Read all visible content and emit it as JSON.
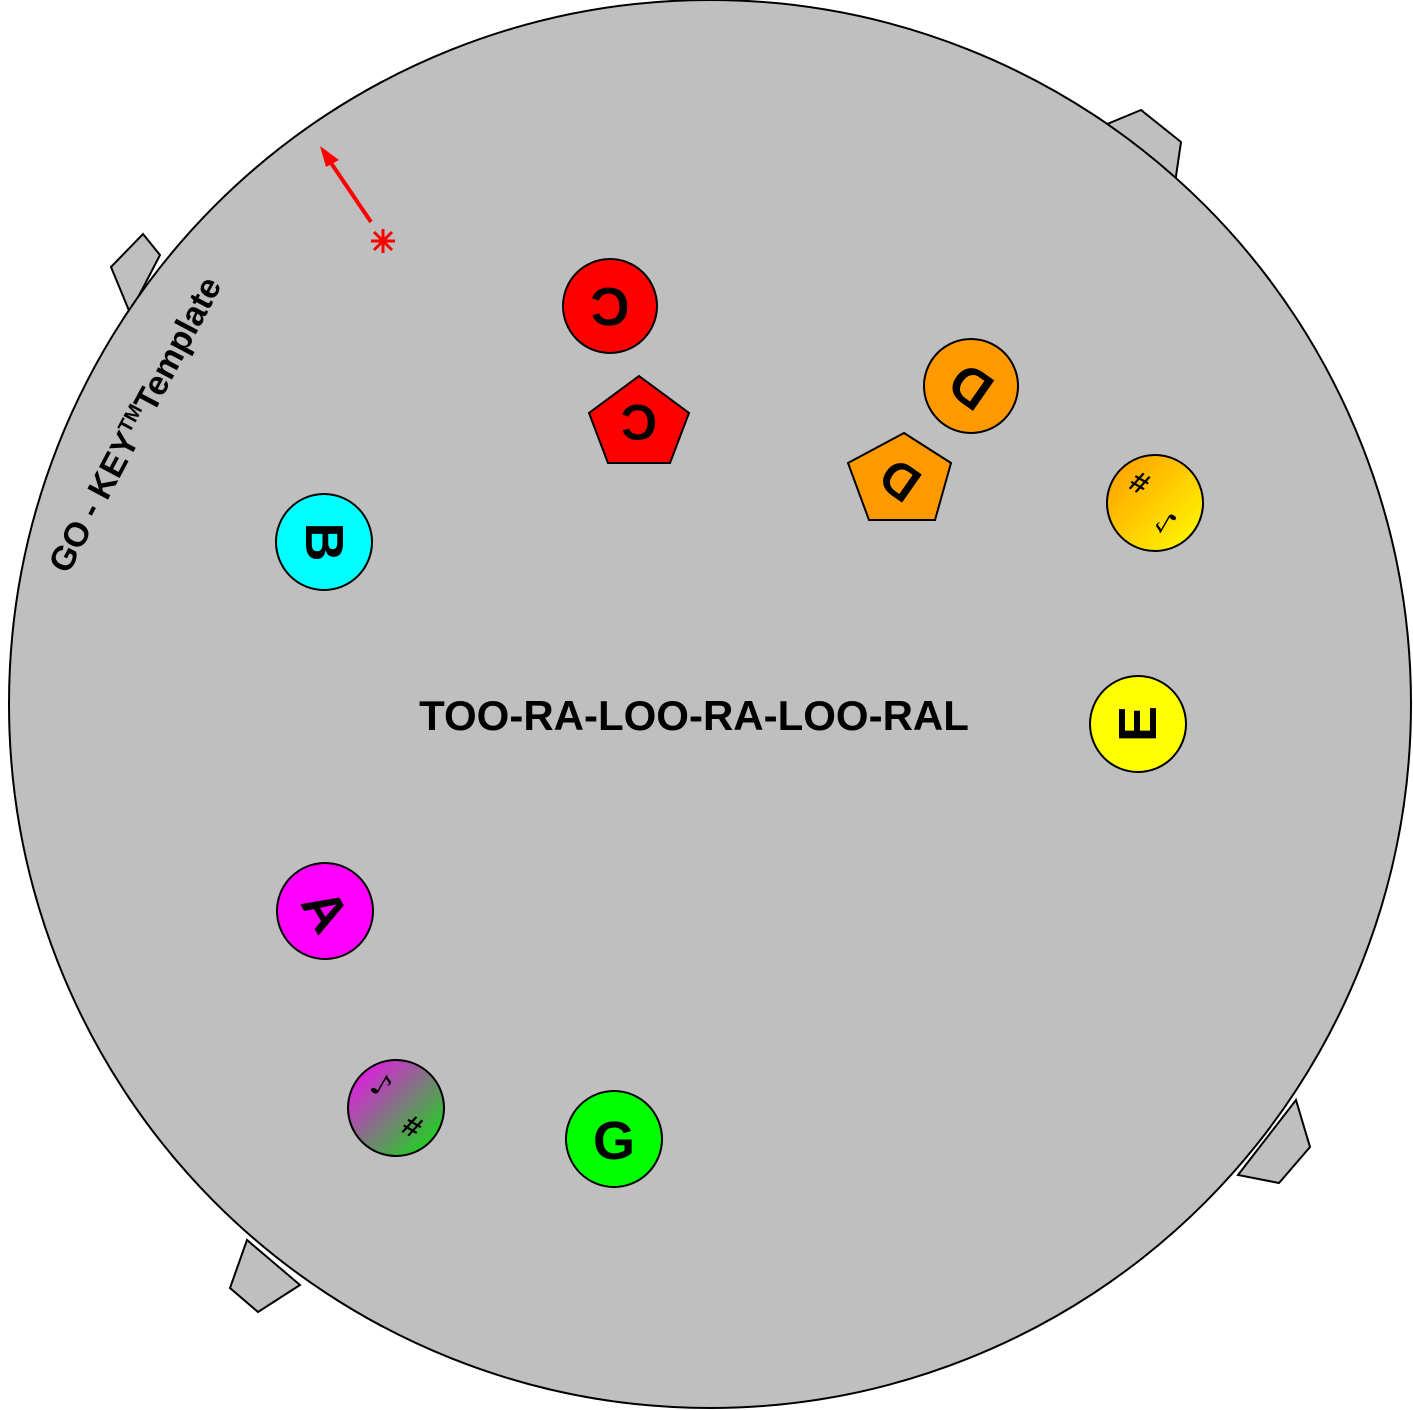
{
  "brand": {
    "title": "GO - KEY",
    "trademark": "TM",
    "suffix": "Template"
  },
  "song_title": "TOO-RA-LOO-RA-LOO-RAL",
  "markers": [
    {
      "id": "note-c",
      "shape": "circle",
      "label": "C",
      "color": "#ff0000"
    },
    {
      "id": "note-c-pentagon",
      "shape": "pentagon",
      "label": "C",
      "color": "#ff0000"
    },
    {
      "id": "note-d",
      "shape": "circle",
      "label": "D",
      "color": "#ff9900"
    },
    {
      "id": "note-d-pentagon",
      "shape": "pentagon",
      "label": "D",
      "color": "#ff9900"
    },
    {
      "id": "note-d-sharp",
      "shape": "circle",
      "label": "#",
      "note_glyph": "♪",
      "color": "gradient-orange-yellow"
    },
    {
      "id": "note-e",
      "shape": "circle",
      "label": "E",
      "color": "#ffff00"
    },
    {
      "id": "note-b",
      "shape": "circle",
      "label": "B",
      "color": "#00ffff"
    },
    {
      "id": "note-a",
      "shape": "circle",
      "label": "A",
      "color": "#ff00ff"
    },
    {
      "id": "note-f-sharp",
      "shape": "circle",
      "label": "#",
      "note_glyph": "♪",
      "color": "gradient-magenta-green"
    },
    {
      "id": "note-g",
      "shape": "circle",
      "label": "G",
      "color": "#00ff00"
    }
  ],
  "colors": {
    "disc": "#bfbfbf",
    "outline": "#000000",
    "start_marker": "#ff0000"
  },
  "icons": [
    "start-arrow-icon",
    "start-star-icon",
    "sharp-icon",
    "eighth-note-icon"
  ]
}
